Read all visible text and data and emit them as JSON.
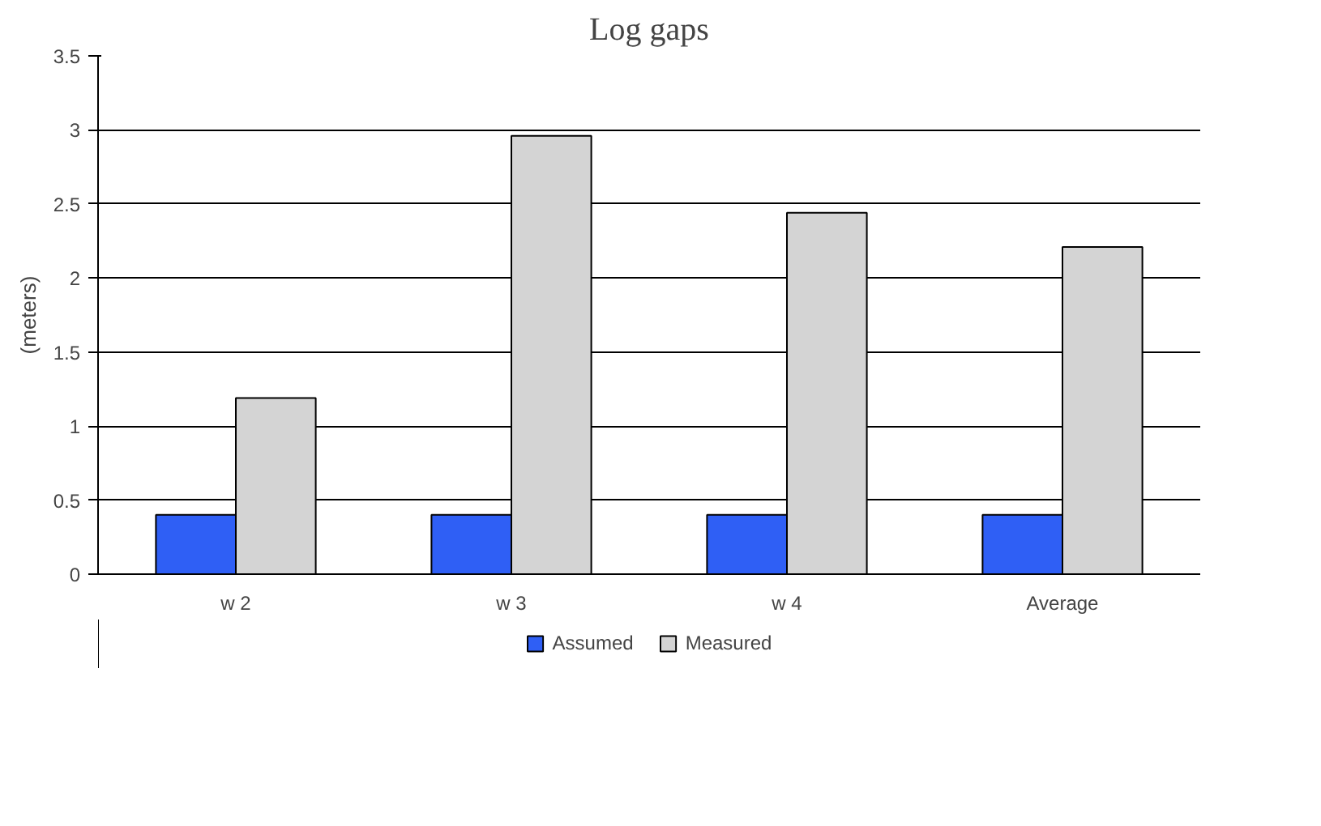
{
  "chart_data": {
    "type": "bar",
    "title": "Log gaps",
    "ylabel": "(meters)",
    "categories": [
      "w 2",
      "w 3",
      "w 4",
      "Average"
    ],
    "series": [
      {
        "name": "Assumed",
        "color": "#2f5ff5",
        "values": [
          0.4,
          0.4,
          0.4,
          0.4
        ]
      },
      {
        "name": "Measured",
        "color": "#d4d4d4",
        "values": [
          1.19,
          2.96,
          2.44,
          2.21
        ]
      }
    ],
    "ylim": [
      0,
      3.5
    ],
    "yticks": [
      0,
      0.5,
      1,
      1.5,
      2,
      2.5,
      3,
      3.5
    ],
    "grid": "y",
    "legend": "bottom"
  }
}
